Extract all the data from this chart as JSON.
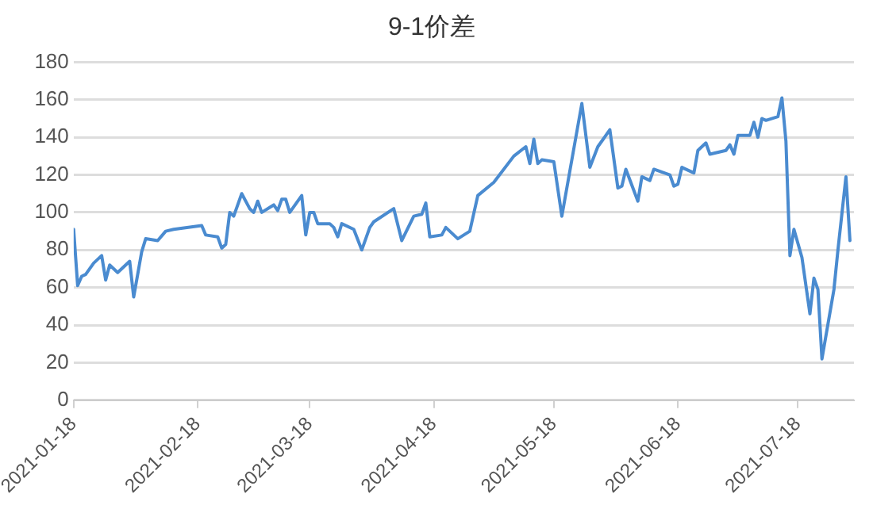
{
  "chart_data": {
    "type": "line",
    "title": "9-1价差",
    "color": "#4a8bd0",
    "grid": "y",
    "marker": "none",
    "line_style": "solid",
    "xlim": [
      "2021-01-18",
      "2021-08-01"
    ],
    "xticks": [
      "2021-01-18",
      "2021-02-18",
      "2021-03-18",
      "2021-04-18",
      "2021-05-18",
      "2021-06-18",
      "2021-07-18"
    ],
    "ylim": [
      0,
      180
    ],
    "yticks": [
      0,
      20,
      40,
      60,
      80,
      100,
      120,
      140,
      160,
      180
    ],
    "x": [
      "2021-01-18",
      "2021-01-19",
      "2021-01-20",
      "2021-01-21",
      "2021-01-23",
      "2021-01-25",
      "2021-01-26",
      "2021-01-27",
      "2021-01-28",
      "2021-01-29",
      "2021-02-01",
      "2021-02-02",
      "2021-02-04",
      "2021-02-05",
      "2021-02-08",
      "2021-02-10",
      "2021-02-12",
      "2021-02-19",
      "2021-02-20",
      "2021-02-23",
      "2021-02-24",
      "2021-02-25",
      "2021-02-26",
      "2021-02-27",
      "2021-03-01",
      "2021-03-03",
      "2021-03-04",
      "2021-03-05",
      "2021-03-06",
      "2021-03-09",
      "2021-03-10",
      "2021-03-11",
      "2021-03-12",
      "2021-03-13",
      "2021-03-16",
      "2021-03-17",
      "2021-03-18",
      "2021-03-19",
      "2021-03-20",
      "2021-03-23",
      "2021-03-24",
      "2021-03-25",
      "2021-03-26",
      "2021-03-29",
      "2021-03-31",
      "2021-04-02",
      "2021-04-03",
      "2021-04-08",
      "2021-04-10",
      "2021-04-13",
      "2021-04-15",
      "2021-04-16",
      "2021-04-17",
      "2021-04-20",
      "2021-04-21",
      "2021-04-24",
      "2021-04-27",
      "2021-04-29",
      "2021-05-03",
      "2021-05-08",
      "2021-05-11",
      "2021-05-12",
      "2021-05-13",
      "2021-05-14",
      "2021-05-15",
      "2021-05-18",
      "2021-05-20",
      "2021-05-25",
      "2021-05-27",
      "2021-05-29",
      "2021-06-01",
      "2021-06-03",
      "2021-06-04",
      "2021-06-05",
      "2021-06-08",
      "2021-06-09",
      "2021-06-11",
      "2021-06-12",
      "2021-06-16",
      "2021-06-17",
      "2021-06-18",
      "2021-06-19",
      "2021-06-22",
      "2021-06-23",
      "2021-06-25",
      "2021-06-26",
      "2021-06-30",
      "2021-07-01",
      "2021-07-02",
      "2021-07-03",
      "2021-07-06",
      "2021-07-07",
      "2021-07-08",
      "2021-07-09",
      "2021-07-10",
      "2021-07-13",
      "2021-07-14",
      "2021-07-15",
      "2021-07-16",
      "2021-07-17",
      "2021-07-19",
      "2021-07-21",
      "2021-07-22",
      "2021-07-23",
      "2021-07-24",
      "2021-07-27",
      "2021-07-28",
      "2021-07-30",
      "2021-07-31"
    ],
    "values": [
      91,
      61,
      66,
      67,
      73,
      77,
      64,
      72,
      70,
      68,
      74,
      55,
      79,
      86,
      85,
      90,
      91,
      93,
      88,
      87,
      81,
      83,
      100,
      98,
      110,
      102,
      100,
      106,
      100,
      104,
      101,
      107,
      107,
      100,
      109,
      88,
      100,
      100,
      94,
      94,
      92,
      87,
      94,
      91,
      80,
      92,
      95,
      102,
      85,
      98,
      99,
      105,
      87,
      88,
      92,
      86,
      90,
      109,
      116,
      130,
      135,
      126,
      139,
      126,
      128,
      127,
      98,
      158,
      124,
      135,
      144,
      113,
      114,
      123,
      106,
      119,
      117,
      123,
      120,
      114,
      115,
      124,
      121,
      133,
      137,
      131,
      133,
      136,
      131,
      141,
      141,
      148,
      140,
      150,
      149,
      151,
      161,
      138,
      77,
      91,
      76,
      46,
      65,
      59,
      22,
      59,
      80,
      119,
      85
    ]
  }
}
